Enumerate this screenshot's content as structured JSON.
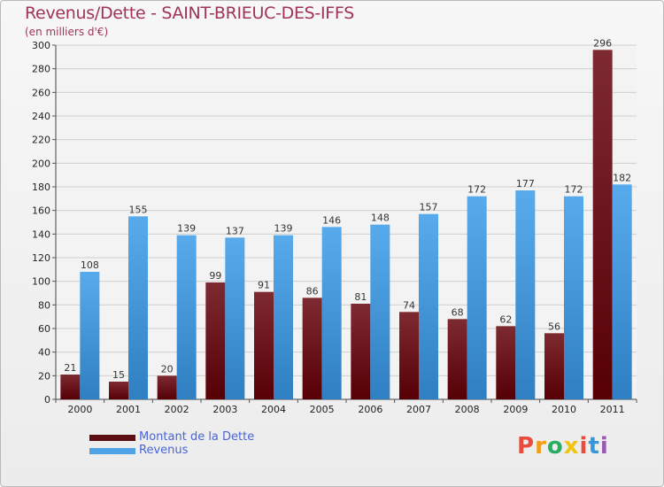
{
  "chart_data": {
    "type": "bar",
    "title": "Revenus/Dette - SAINT-BRIEUC-DES-IFFS",
    "subtitle": "(en milliers d'€)",
    "categories": [
      "2000",
      "2001",
      "2002",
      "2003",
      "2004",
      "2005",
      "2006",
      "2007",
      "2008",
      "2009",
      "2010",
      "2011"
    ],
    "series": [
      {
        "name": "Montant de la Dette",
        "color": "#7a1a22",
        "values": [
          21,
          15,
          20,
          99,
          91,
          86,
          81,
          74,
          68,
          62,
          56,
          296
        ]
      },
      {
        "name": "Revenus",
        "color": "#4ea3e6",
        "values": [
          108,
          155,
          139,
          137,
          139,
          146,
          148,
          157,
          172,
          177,
          172,
          182
        ]
      }
    ],
    "ylim": [
      0,
      300
    ],
    "yticks": [
      0,
      20,
      40,
      60,
      80,
      100,
      120,
      140,
      160,
      180,
      200,
      220,
      240,
      260,
      280,
      300
    ],
    "grid": true,
    "legend_position": "bottom-left"
  },
  "logo": {
    "letters": [
      "P",
      "r",
      "o",
      "x",
      "i",
      "t",
      "i"
    ],
    "colors": [
      "#e94b3c",
      "#f39c12",
      "#27ae60",
      "#f1c40f",
      "#e94b3c",
      "#3498db",
      "#9b59b6"
    ]
  }
}
